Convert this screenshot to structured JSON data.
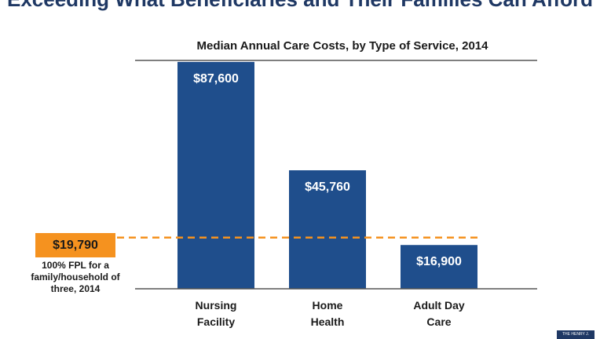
{
  "header": {
    "slide_title": "Exceeding What Beneficiaries and Their Families Can Afford"
  },
  "chart_data": {
    "type": "bar",
    "title": "Median Annual Care Costs, by Type of Service, 2014",
    "categories": [
      [
        "Nursing",
        "Facility"
      ],
      [
        "Home",
        "Health"
      ],
      [
        "Adult Day",
        "Care"
      ]
    ],
    "values": [
      87600,
      45760,
      16900
    ],
    "value_labels": [
      "$87,600",
      "$45,760",
      "$16,900"
    ],
    "ylim": [
      0,
      100000
    ],
    "xlabel": "",
    "ylabel": "",
    "grid": false,
    "bar_color": "#1f4e8c",
    "reference_line": {
      "value": 19790,
      "label": "$19,790",
      "caption": "100% FPL for a family/household of three, 2014",
      "color": "#f5921f",
      "style": "dashed"
    }
  },
  "footer": {
    "logo_text": "THE HENRY J."
  }
}
